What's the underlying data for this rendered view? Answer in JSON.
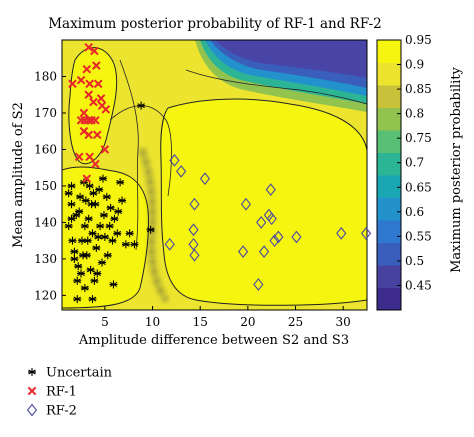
{
  "chart_data": {
    "type": "contour",
    "title": "Maximum posterior probability of RF-1 and RF-2",
    "xlabel": "Amplitude difference between S2 and S3",
    "ylabel": "Mean amplitude of S2",
    "xlim": [
      0.5,
      32.5
    ],
    "ylim": [
      116,
      190
    ],
    "xticks": [
      5,
      10,
      15,
      20,
      25,
      30
    ],
    "yticks": [
      120,
      130,
      140,
      150,
      160,
      170,
      180
    ],
    "colorbar": {
      "label": "Maximum posterior probability",
      "range": [
        0.4,
        0.95
      ],
      "ticks": [
        0.45,
        0.5,
        0.55,
        0.6,
        0.65,
        0.7,
        0.75,
        0.8,
        0.85,
        0.9,
        0.95
      ],
      "colors": [
        "#3d2c8c",
        "#4741a0",
        "#3a5ebc",
        "#2f78d0",
        "#2391cc",
        "#1aa6b3",
        "#2cb595",
        "#58bf74",
        "#92c34f",
        "#c8c23a",
        "#ece42e",
        "#f5f50f"
      ]
    },
    "grid": false,
    "legend": {
      "placement": "below",
      "entries": [
        "Uncertain",
        "RF-1",
        "RF-2"
      ]
    },
    "series": [
      {
        "name": "Uncertain",
        "marker": "asterisk",
        "color": "#000000",
        "points": [
          [
            1.5,
            150
          ],
          [
            1.5,
            145
          ],
          [
            1.2,
            139
          ],
          [
            1.6,
            135
          ],
          [
            1.8,
            132
          ],
          [
            2.2,
            128
          ],
          [
            2.0,
            142
          ],
          [
            2.4,
            147
          ],
          [
            2.8,
            151
          ],
          [
            3.0,
            146
          ],
          [
            3.3,
            141
          ],
          [
            3.7,
            137
          ],
          [
            4.1,
            133
          ],
          [
            4.4,
            149
          ],
          [
            4.8,
            152
          ],
          [
            5.2,
            147
          ],
          [
            5.6,
            144
          ],
          [
            2.6,
            135
          ],
          [
            3.1,
            131
          ],
          [
            3.5,
            127
          ],
          [
            3.9,
            124
          ],
          [
            4.5,
            139
          ],
          [
            5.0,
            136
          ],
          [
            5.5,
            139
          ],
          [
            6.0,
            141
          ],
          [
            6.4,
            143
          ],
          [
            6.8,
            146
          ],
          [
            4.2,
            126
          ],
          [
            2.1,
            124
          ],
          [
            1.8,
            130
          ],
          [
            2.9,
            139
          ],
          [
            3.4,
            150
          ],
          [
            3.8,
            148
          ],
          [
            4.9,
            142
          ],
          [
            5.8,
            135
          ],
          [
            6.3,
            137
          ],
          [
            7.2,
            134
          ],
          [
            7.6,
            137
          ],
          [
            8.1,
            134
          ],
          [
            2.3,
            143
          ],
          [
            2.7,
            131
          ],
          [
            3.6,
            145
          ],
          [
            4.7,
            129
          ],
          [
            5.3,
            131
          ],
          [
            1.2,
            148
          ],
          [
            2.5,
            126
          ],
          [
            3.2,
            135
          ],
          [
            2.1,
            119
          ],
          [
            3.7,
            119
          ],
          [
            5.9,
            123
          ],
          [
            9.8,
            138
          ],
          [
            8.8,
            172
          ],
          [
            6.6,
            151
          ],
          [
            4.0,
            145
          ],
          [
            4.3,
            136
          ],
          [
            1.5,
            141
          ],
          [
            2.9,
            122
          ]
        ]
      },
      {
        "name": "RF-1",
        "marker": "x",
        "color": "#e8262b",
        "points": [
          [
            3.3,
            188
          ],
          [
            3.9,
            187
          ],
          [
            3.1,
            182
          ],
          [
            4.1,
            183
          ],
          [
            2.5,
            179
          ],
          [
            3.4,
            178
          ],
          [
            4.3,
            178
          ],
          [
            1.6,
            178
          ],
          [
            3.3,
            175
          ],
          [
            3.8,
            173
          ],
          [
            4.6,
            174
          ],
          [
            5.1,
            171
          ],
          [
            2.8,
            170
          ],
          [
            2.5,
            168
          ],
          [
            2.9,
            168
          ],
          [
            3.3,
            168
          ],
          [
            3.6,
            168
          ],
          [
            4.0,
            168
          ],
          [
            4.7,
            172
          ],
          [
            2.8,
            165
          ],
          [
            3.3,
            164
          ],
          [
            4.2,
            164
          ],
          [
            5.0,
            160
          ],
          [
            2.3,
            158
          ],
          [
            3.4,
            158
          ],
          [
            4.0,
            156
          ],
          [
            3.1,
            152
          ]
        ]
      },
      {
        "name": "RF-2",
        "marker": "diamond",
        "color": "#4a49a3",
        "points": [
          [
            12.3,
            157
          ],
          [
            13.0,
            154
          ],
          [
            15.5,
            152
          ],
          [
            14.4,
            145
          ],
          [
            14.3,
            138
          ],
          [
            14.3,
            134
          ],
          [
            14.4,
            131
          ],
          [
            11.8,
            134
          ],
          [
            19.8,
            145
          ],
          [
            22.2,
            142
          ],
          [
            22.4,
            149
          ],
          [
            22.5,
            141
          ],
          [
            23.2,
            136
          ],
          [
            22.8,
            135
          ],
          [
            21.4,
            140
          ],
          [
            21.7,
            132
          ],
          [
            25.1,
            136
          ],
          [
            19.5,
            132
          ],
          [
            21.1,
            123
          ],
          [
            29.8,
            137
          ],
          [
            32.4,
            137
          ]
        ]
      }
    ]
  }
}
